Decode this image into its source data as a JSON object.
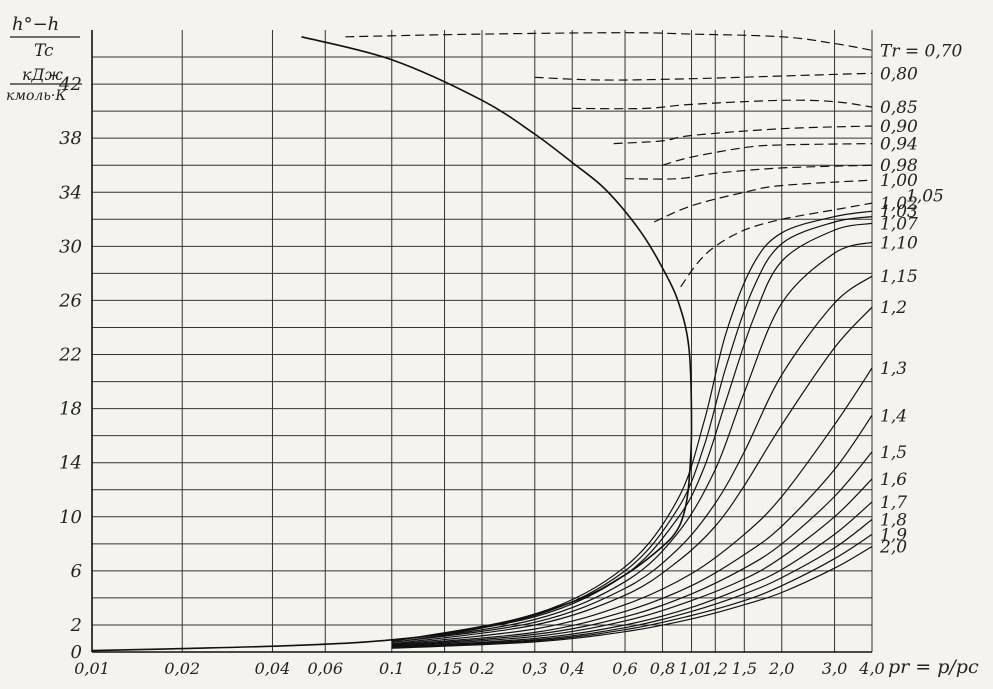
{
  "chart_data": {
    "type": "line",
    "title": "",
    "ylabel_lines": [
      "h°−h",
      "Tc",
      "кДж",
      "кмоль·К"
    ],
    "xlabel": "pr = p/pc",
    "x_scale": "log",
    "xlim": [
      0.01,
      4.0
    ],
    "ylim": [
      0,
      46
    ],
    "x_ticks": [
      {
        "v": 0.01,
        "label": "0,01"
      },
      {
        "v": 0.02,
        "label": "0,02"
      },
      {
        "v": 0.04,
        "label": "0,04"
      },
      {
        "v": 0.06,
        "label": "0,06"
      },
      {
        "v": 0.1,
        "label": "0.1"
      },
      {
        "v": 0.15,
        "label": "0,15"
      },
      {
        "v": 0.2,
        "label": "0.2"
      },
      {
        "v": 0.3,
        "label": "0,3"
      },
      {
        "v": 0.4,
        "label": "0,4"
      },
      {
        "v": 0.6,
        "label": "0,6"
      },
      {
        "v": 0.8,
        "label": "0,8"
      },
      {
        "v": 1.0,
        "label": "1,0"
      },
      {
        "v": 1.2,
        "label": "1,2"
      },
      {
        "v": 1.5,
        "label": "1,5"
      },
      {
        "v": 2.0,
        "label": "2,0"
      },
      {
        "v": 3.0,
        "label": "3,0"
      },
      {
        "v": 4.0,
        "label": "4,0"
      }
    ],
    "y_ticks": [
      0,
      2,
      6,
      10,
      14,
      18,
      22,
      26,
      30,
      34,
      38,
      42
    ],
    "grid": true,
    "saturation_curve": [
      [
        0.05,
        45.5
      ],
      [
        0.1,
        43.8
      ],
      [
        0.2,
        40.8
      ],
      [
        0.3,
        38.3
      ],
      [
        0.4,
        36.2
      ],
      [
        0.5,
        34.5
      ],
      [
        0.6,
        32.6
      ],
      [
        0.7,
        30.6
      ],
      [
        0.8,
        28.4
      ],
      [
        0.9,
        26.0
      ],
      [
        0.98,
        22.5
      ],
      [
        1.0,
        16.5
      ],
      [
        0.98,
        12.5
      ],
      [
        0.95,
        10.5
      ],
      [
        0.9,
        9.1
      ],
      [
        0.8,
        7.8
      ],
      [
        0.6,
        5.7
      ],
      [
        0.4,
        3.7
      ],
      [
        0.2,
        1.8
      ],
      [
        0.1,
        0.9
      ],
      [
        0.05,
        0.5
      ],
      [
        0.02,
        0.25
      ],
      [
        0.01,
        0.1
      ]
    ],
    "series": [
      {
        "name": "Tr=0,70",
        "label": "Tr = 0,70",
        "style": "dashed",
        "values": [
          [
            0.07,
            45.5
          ],
          [
            0.2,
            45.7
          ],
          [
            0.6,
            45.8
          ],
          [
            1.0,
            45.7
          ],
          [
            2.0,
            45.5
          ],
          [
            3.0,
            45.0
          ],
          [
            4.0,
            44.5
          ]
        ]
      },
      {
        "name": "0,80",
        "label": "0,80",
        "style": "dashed",
        "values": [
          [
            0.3,
            42.5
          ],
          [
            0.5,
            42.3
          ],
          [
            1.0,
            42.4
          ],
          [
            2.0,
            42.6
          ],
          [
            4.0,
            42.8
          ]
        ]
      },
      {
        "name": "0,85",
        "label": "0,85",
        "style": "dashed",
        "values": [
          [
            0.4,
            40.2
          ],
          [
            0.7,
            40.2
          ],
          [
            1.0,
            40.5
          ],
          [
            2.0,
            40.8
          ],
          [
            3.0,
            40.7
          ],
          [
            4.0,
            40.3
          ]
        ]
      },
      {
        "name": "0,90",
        "label": "0,90",
        "style": "dashed",
        "values": [
          [
            0.55,
            37.6
          ],
          [
            0.8,
            37.8
          ],
          [
            1.0,
            38.2
          ],
          [
            2.0,
            38.7
          ],
          [
            4.0,
            38.9
          ]
        ]
      },
      {
        "name": "0,94",
        "label": "0,94",
        "style": "dashed",
        "values": [
          [
            0.8,
            36.0
          ],
          [
            1.0,
            36.6
          ],
          [
            1.5,
            37.3
          ],
          [
            2.0,
            37.5
          ],
          [
            4.0,
            37.6
          ]
        ]
      },
      {
        "name": "0,98",
        "label": "0,98",
        "style": "dashed",
        "values": [
          [
            0.6,
            35.0
          ],
          [
            0.9,
            35.0
          ],
          [
            1.2,
            35.4
          ],
          [
            2.0,
            35.8
          ],
          [
            4.0,
            36.0
          ]
        ]
      },
      {
        "name": "1,00",
        "label": "1,00",
        "style": "dashed",
        "values": [
          [
            0.75,
            31.8
          ],
          [
            1.0,
            33.0
          ],
          [
            1.5,
            34.0
          ],
          [
            2.0,
            34.5
          ],
          [
            4.0,
            34.9
          ]
        ]
      },
      {
        "name": "1,02",
        "label": "1,02",
        "style": "dashed",
        "values": [
          [
            0.92,
            27.0
          ],
          [
            1.05,
            28.8
          ],
          [
            1.2,
            30.0
          ],
          [
            1.5,
            31.2
          ],
          [
            2.0,
            32.0
          ],
          [
            3.0,
            32.7
          ],
          [
            4.0,
            33.2
          ]
        ]
      },
      {
        "name": "1,03",
        "label": "1,03",
        "style": "solid",
        "values": [
          [
            0.1,
            0.8
          ],
          [
            0.3,
            2.8
          ],
          [
            0.6,
            6.3
          ],
          [
            0.9,
            11.3
          ],
          [
            1.1,
            17.0
          ],
          [
            1.3,
            23.5
          ],
          [
            1.6,
            28.6
          ],
          [
            2.0,
            31.0
          ],
          [
            3.0,
            32.2
          ],
          [
            4.0,
            32.6
          ]
        ]
      },
      {
        "name": "1,05",
        "label": "1,05",
        "style": "solid",
        "values": [
          [
            0.1,
            0.8
          ],
          [
            0.3,
            2.7
          ],
          [
            0.6,
            6.0
          ],
          [
            0.9,
            10.6
          ],
          [
            1.1,
            15.2
          ],
          [
            1.3,
            21.0
          ],
          [
            1.6,
            26.8
          ],
          [
            2.0,
            30.2
          ],
          [
            3.0,
            31.8
          ],
          [
            4.0,
            32.2
          ]
        ]
      },
      {
        "name": "1,07",
        "label": "1,07",
        "style": "solid",
        "values": [
          [
            0.1,
            0.8
          ],
          [
            0.3,
            2.6
          ],
          [
            0.6,
            5.7
          ],
          [
            0.9,
            9.9
          ],
          [
            1.1,
            13.6
          ],
          [
            1.3,
            18.5
          ],
          [
            1.6,
            24.5
          ],
          [
            2.0,
            28.9
          ],
          [
            3.0,
            31.2
          ],
          [
            4.0,
            31.7
          ]
        ]
      },
      {
        "name": "1,10",
        "label": "1,10",
        "style": "solid",
        "values": [
          [
            0.1,
            0.7
          ],
          [
            0.3,
            2.4
          ],
          [
            0.6,
            5.2
          ],
          [
            0.9,
            8.8
          ],
          [
            1.2,
            13.5
          ],
          [
            1.5,
            19.2
          ],
          [
            2.0,
            25.8
          ],
          [
            3.0,
            29.5
          ],
          [
            4.0,
            30.3
          ]
        ]
      },
      {
        "name": "1,15",
        "label": "1,15",
        "style": "solid",
        "values": [
          [
            0.1,
            0.7
          ],
          [
            0.3,
            2.2
          ],
          [
            0.6,
            4.7
          ],
          [
            0.9,
            7.6
          ],
          [
            1.2,
            11.0
          ],
          [
            1.5,
            14.8
          ],
          [
            2.0,
            20.5
          ],
          [
            3.0,
            25.8
          ],
          [
            4.0,
            27.8
          ]
        ]
      },
      {
        "name": "1,2",
        "label": "1,2",
        "style": "solid",
        "values": [
          [
            0.1,
            0.6
          ],
          [
            0.3,
            2.0
          ],
          [
            0.6,
            4.2
          ],
          [
            0.9,
            6.7
          ],
          [
            1.2,
            9.3
          ],
          [
            1.5,
            12.3
          ],
          [
            2.0,
            16.8
          ],
          [
            3.0,
            22.5
          ],
          [
            4.0,
            25.5
          ]
        ]
      },
      {
        "name": "1,3",
        "label": "1,3",
        "style": "solid",
        "values": [
          [
            0.1,
            0.55
          ],
          [
            0.3,
            1.7
          ],
          [
            0.6,
            3.5
          ],
          [
            1.0,
            5.8
          ],
          [
            1.5,
            8.7
          ],
          [
            2.0,
            11.5
          ],
          [
            3.0,
            16.8
          ],
          [
            4.0,
            21.0
          ]
        ]
      },
      {
        "name": "1,4",
        "label": "1,4",
        "style": "solid",
        "values": [
          [
            0.1,
            0.5
          ],
          [
            0.3,
            1.45
          ],
          [
            0.6,
            3.0
          ],
          [
            1.0,
            4.9
          ],
          [
            1.5,
            7.2
          ],
          [
            2.0,
            9.3
          ],
          [
            3.0,
            13.5
          ],
          [
            4.0,
            17.5
          ]
        ]
      },
      {
        "name": "1,5",
        "label": "1,5",
        "style": "solid",
        "values": [
          [
            0.1,
            0.45
          ],
          [
            0.3,
            1.3
          ],
          [
            0.6,
            2.6
          ],
          [
            1.0,
            4.3
          ],
          [
            1.5,
            6.2
          ],
          [
            2.0,
            8.0
          ],
          [
            3.0,
            11.5
          ],
          [
            4.0,
            14.8
          ]
        ]
      },
      {
        "name": "1,6",
        "label": "1,6",
        "style": "solid",
        "values": [
          [
            0.1,
            0.4
          ],
          [
            0.3,
            1.15
          ],
          [
            0.6,
            2.3
          ],
          [
            1.0,
            3.8
          ],
          [
            1.5,
            5.4
          ],
          [
            2.0,
            7.0
          ],
          [
            3.0,
            10.0
          ],
          [
            4.0,
            12.8
          ]
        ]
      },
      {
        "name": "1,7",
        "label": "1,7",
        "style": "solid",
        "values": [
          [
            0.1,
            0.35
          ],
          [
            0.3,
            1.0
          ],
          [
            0.6,
            2.0
          ],
          [
            1.0,
            3.3
          ],
          [
            1.5,
            4.8
          ],
          [
            2.0,
            6.1
          ],
          [
            3.0,
            8.7
          ],
          [
            4.0,
            11.1
          ]
        ]
      },
      {
        "name": "1,8",
        "label": "1,8",
        "style": "solid",
        "values": [
          [
            0.1,
            0.32
          ],
          [
            0.3,
            0.9
          ],
          [
            0.6,
            1.8
          ],
          [
            1.0,
            3.0
          ],
          [
            1.5,
            4.3
          ],
          [
            2.0,
            5.5
          ],
          [
            3.0,
            7.7
          ],
          [
            4.0,
            9.8
          ]
        ]
      },
      {
        "name": "1,9",
        "label": "1,9",
        "style": "solid",
        "values": [
          [
            0.1,
            0.3
          ],
          [
            0.3,
            0.82
          ],
          [
            0.6,
            1.65
          ],
          [
            1.0,
            2.7
          ],
          [
            1.5,
            3.8
          ],
          [
            2.0,
            4.9
          ],
          [
            3.0,
            6.9
          ],
          [
            4.0,
            8.7
          ]
        ]
      },
      {
        "name": "2,0",
        "label": "2,0",
        "style": "solid",
        "values": [
          [
            0.1,
            0.28
          ],
          [
            0.3,
            0.75
          ],
          [
            0.6,
            1.5
          ],
          [
            1.0,
            2.45
          ],
          [
            1.5,
            3.5
          ],
          [
            2.0,
            4.4
          ],
          [
            3.0,
            6.2
          ],
          [
            4.0,
            7.8
          ]
        ]
      }
    ]
  }
}
